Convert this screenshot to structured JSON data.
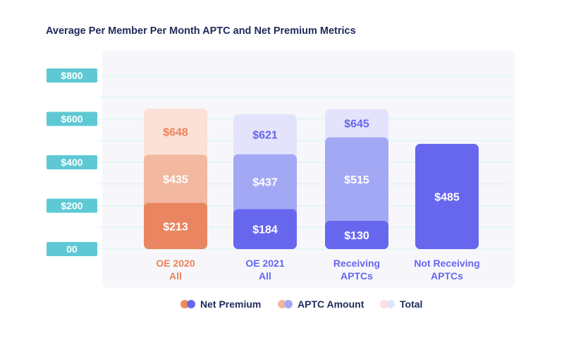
{
  "chart_data": {
    "type": "bar",
    "title": "Average Per Member Per Month APTC and Net Premium Metrics",
    "categories": [
      {
        "lines": [
          "OE 2020",
          "All"
        ]
      },
      {
        "lines": [
          "OE 2021",
          "All"
        ]
      },
      {
        "lines": [
          "Receiving",
          "APTCs"
        ]
      },
      {
        "lines": [
          "Not Receiving",
          "APTCs"
        ]
      }
    ],
    "series": [
      {
        "name": "Net Premium",
        "values": [
          213,
          184,
          130,
          485
        ]
      },
      {
        "name": "APTC Amount",
        "values": [
          435,
          437,
          515,
          null
        ]
      },
      {
        "name": "Total",
        "values": [
          648,
          621,
          645,
          null
        ]
      }
    ],
    "value_labels": [
      [
        "$213",
        "$435",
        "$648"
      ],
      [
        "$184",
        "$437",
        "$621"
      ],
      [
        "$130",
        "$515",
        "$645"
      ],
      [
        "$485"
      ]
    ],
    "y_ticks": [
      {
        "value": 0,
        "label": "00"
      },
      {
        "value": 200,
        "label": "$200"
      },
      {
        "value": 400,
        "label": "$400"
      },
      {
        "value": 600,
        "label": "$600"
      },
      {
        "value": 800,
        "label": "$800"
      }
    ],
    "ylim": [
      0,
      800
    ],
    "grid": true,
    "legend_position": "bottom",
    "colors": {
      "panel": "#f7f7fb",
      "grid": "#d6f0f3",
      "tick_box": "#5ec8d4",
      "tick_text": "#ffffff",
      "category_text_orange": "#e8825a",
      "category_text_purple": "#6366f1",
      "bar_text": "#ffffff",
      "col0": [
        "#e98560",
        "#f2b8a0",
        "#fbe1d7"
      ],
      "col0_text": [
        "#ffffff",
        "#ffffff",
        "#ef8258"
      ],
      "col1": [
        "#6767ee",
        "#a3a8f5",
        "#e3e4fb"
      ],
      "col1_text": [
        "#ffffff",
        "#ffffff",
        "#6566ee"
      ],
      "col2": [
        "#6767ee",
        "#a3a8f5",
        "#e3e4fb"
      ],
      "col2_text": [
        "#ffffff",
        "#ffffff",
        "#6566ee"
      ],
      "col3": [
        "#6767ee"
      ],
      "col3_text": [
        "#ffffff"
      ],
      "legend_text": "#1e2a5a"
    }
  },
  "legend": [
    {
      "label": "Net Premium",
      "dot_colors": [
        "#ef8a5e",
        "#6767ee"
      ]
    },
    {
      "label": "APTC Amount",
      "dot_colors": [
        "#f4b79c",
        "#a3a8f5"
      ]
    },
    {
      "label": "Total",
      "dot_colors": [
        "#fbe1d7",
        "#e3e4fb"
      ]
    }
  ]
}
